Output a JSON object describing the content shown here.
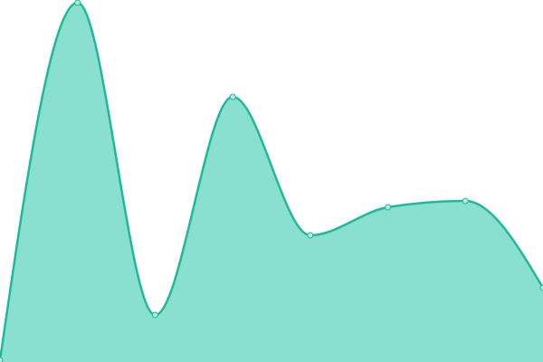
{
  "chart_data": {
    "type": "area",
    "categories": [
      null,
      null,
      null,
      null,
      null,
      null,
      null,
      null
    ],
    "values": [
      2,
      397,
      52,
      293,
      140,
      171,
      178,
      82
    ],
    "ylim": [
      0,
      400
    ],
    "color": "#1fb999",
    "fill": "#89e0cf",
    "marker_fill": "#b6ece0"
  }
}
